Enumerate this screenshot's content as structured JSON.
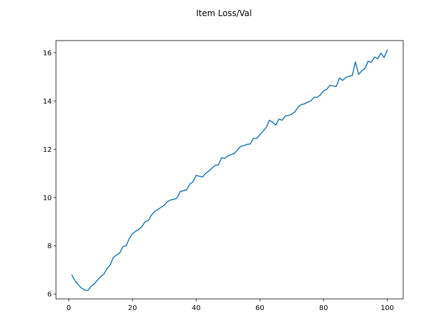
{
  "chart_data": {
    "type": "line",
    "title": "Item Loss/Val",
    "xlabel": "",
    "ylabel": "",
    "xlim": [
      -4,
      105
    ],
    "ylim": [
      5.8,
      16.5
    ],
    "xticks": [
      0,
      20,
      40,
      60,
      80,
      100
    ],
    "yticks": [
      6,
      8,
      10,
      12,
      14,
      16
    ],
    "grid": false,
    "series": [
      {
        "color": "#1f77b4",
        "x": [
          1,
          2,
          3,
          4,
          5,
          6,
          7,
          8,
          9,
          10,
          11,
          12,
          13,
          14,
          15,
          16,
          17,
          18,
          19,
          20,
          21,
          22,
          23,
          24,
          25,
          26,
          27,
          28,
          29,
          30,
          31,
          32,
          33,
          34,
          35,
          36,
          37,
          38,
          39,
          40,
          41,
          42,
          43,
          44,
          45,
          46,
          47,
          48,
          49,
          50,
          51,
          52,
          53,
          54,
          55,
          56,
          57,
          58,
          59,
          60,
          61,
          62,
          63,
          64,
          65,
          66,
          67,
          68,
          69,
          70,
          71,
          72,
          73,
          74,
          75,
          76,
          77,
          78,
          79,
          80,
          81,
          82,
          83,
          84,
          85,
          86,
          87,
          88,
          89,
          90,
          91,
          92,
          93,
          94,
          95,
          96,
          97,
          98,
          99,
          100
        ],
        "values": [
          6.78,
          6.55,
          6.38,
          6.25,
          6.17,
          6.15,
          6.32,
          6.42,
          6.58,
          6.72,
          6.82,
          7.05,
          7.2,
          7.52,
          7.62,
          7.7,
          7.97,
          8.0,
          8.3,
          8.5,
          8.6,
          8.68,
          8.8,
          9.0,
          9.05,
          9.28,
          9.42,
          9.5,
          9.6,
          9.68,
          9.83,
          9.9,
          9.92,
          9.98,
          10.25,
          10.28,
          10.32,
          10.55,
          10.65,
          10.92,
          10.88,
          10.85,
          11.0,
          11.1,
          11.22,
          11.33,
          11.35,
          11.65,
          11.62,
          11.72,
          11.78,
          11.82,
          11.98,
          12.12,
          12.15,
          12.2,
          12.22,
          12.45,
          12.45,
          12.6,
          12.75,
          12.9,
          13.2,
          13.12,
          13.0,
          13.25,
          13.2,
          13.38,
          13.4,
          13.45,
          13.55,
          13.75,
          13.85,
          13.88,
          13.95,
          14.0,
          14.15,
          14.15,
          14.25,
          14.42,
          14.48,
          14.65,
          14.62,
          14.6,
          14.95,
          14.85,
          14.98,
          15.02,
          15.05,
          15.62,
          15.1,
          15.25,
          15.35,
          15.65,
          15.6,
          15.82,
          15.75,
          15.98,
          15.8,
          16.1
        ]
      }
    ]
  }
}
